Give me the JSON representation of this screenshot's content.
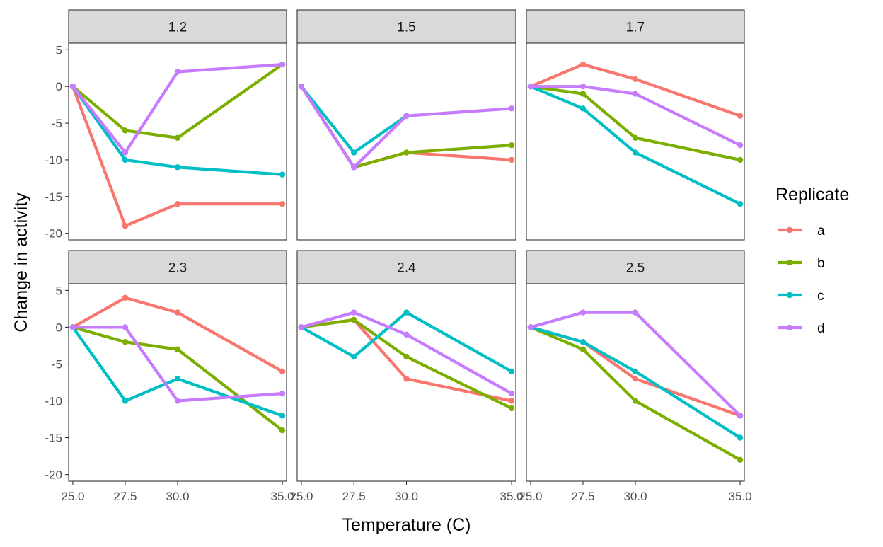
{
  "chart_data": {
    "type": "line",
    "facet_layout": "2x3 grid",
    "xlabel": "Temperature (C)",
    "ylabel": "Change in activity",
    "x": [
      25.0,
      27.5,
      30.0,
      35.0
    ],
    "x_tick_labels": [
      "25.0",
      "27.5",
      "30.0",
      "35.0"
    ],
    "xlim": [
      24.8,
      35.2
    ],
    "ylim": [
      -20,
      5
    ],
    "y_ticks": [
      5,
      0,
      -5,
      -10,
      -15,
      -20
    ],
    "y_tick_labels": [
      "5",
      "0",
      "-5",
      "-10",
      "-15",
      "-20"
    ],
    "grid": false,
    "legend": {
      "title": "Replicate",
      "placement": "right",
      "entries": [
        {
          "name": "a",
          "color": "#F8766D"
        },
        {
          "name": "b",
          "color": "#7CAE00"
        },
        {
          "name": "c",
          "color": "#00BFC4"
        },
        {
          "name": "d",
          "color": "#C77CFF"
        }
      ]
    },
    "panels": [
      {
        "label": "1.2",
        "series": [
          {
            "name": "a",
            "values": [
              0,
              -19,
              -16,
              -16
            ]
          },
          {
            "name": "b",
            "values": [
              0,
              -6,
              -7,
              3
            ]
          },
          {
            "name": "c",
            "values": [
              0,
              -10,
              -11,
              -12
            ]
          },
          {
            "name": "d",
            "values": [
              0,
              -9,
              2,
              3
            ]
          }
        ]
      },
      {
        "label": "1.5",
        "series": [
          {
            "name": "a",
            "values": [
              0,
              -11,
              -9,
              -10
            ]
          },
          {
            "name": "b",
            "values": [
              0,
              -11,
              -9,
              -8
            ]
          },
          {
            "name": "c",
            "values": [
              0,
              -9,
              -4,
              null
            ]
          },
          {
            "name": "d",
            "values": [
              0,
              -11,
              -4,
              -3
            ]
          }
        ]
      },
      {
        "label": "1.7",
        "series": [
          {
            "name": "a",
            "values": [
              0,
              3,
              1,
              -4
            ]
          },
          {
            "name": "b",
            "values": [
              0,
              -1,
              -7,
              -10
            ]
          },
          {
            "name": "c",
            "values": [
              0,
              -3,
              -9,
              -16
            ]
          },
          {
            "name": "d",
            "values": [
              0,
              0,
              -1,
              -8
            ]
          }
        ]
      },
      {
        "label": "2.3",
        "series": [
          {
            "name": "a",
            "values": [
              0,
              4,
              2,
              -6
            ]
          },
          {
            "name": "b",
            "values": [
              0,
              -2,
              -3,
              -14
            ]
          },
          {
            "name": "c",
            "values": [
              0,
              -10,
              -7,
              -12
            ]
          },
          {
            "name": "d",
            "values": [
              0,
              0,
              -10,
              -9
            ]
          }
        ]
      },
      {
        "label": "2.4",
        "series": [
          {
            "name": "a",
            "values": [
              0,
              1,
              -7,
              -10
            ]
          },
          {
            "name": "b",
            "values": [
              0,
              1,
              -4,
              -11
            ]
          },
          {
            "name": "c",
            "values": [
              0,
              -4,
              2,
              -6
            ]
          },
          {
            "name": "d",
            "values": [
              0,
              2,
              -1,
              -9
            ]
          }
        ]
      },
      {
        "label": "2.5",
        "series": [
          {
            "name": "a",
            "values": [
              0,
              -2,
              -7,
              -12
            ]
          },
          {
            "name": "b",
            "values": [
              0,
              -3,
              -10,
              -18
            ]
          },
          {
            "name": "c",
            "values": [
              0,
              -2,
              -6,
              -15
            ]
          },
          {
            "name": "d",
            "values": [
              0,
              2,
              2,
              -12
            ]
          }
        ]
      }
    ]
  }
}
